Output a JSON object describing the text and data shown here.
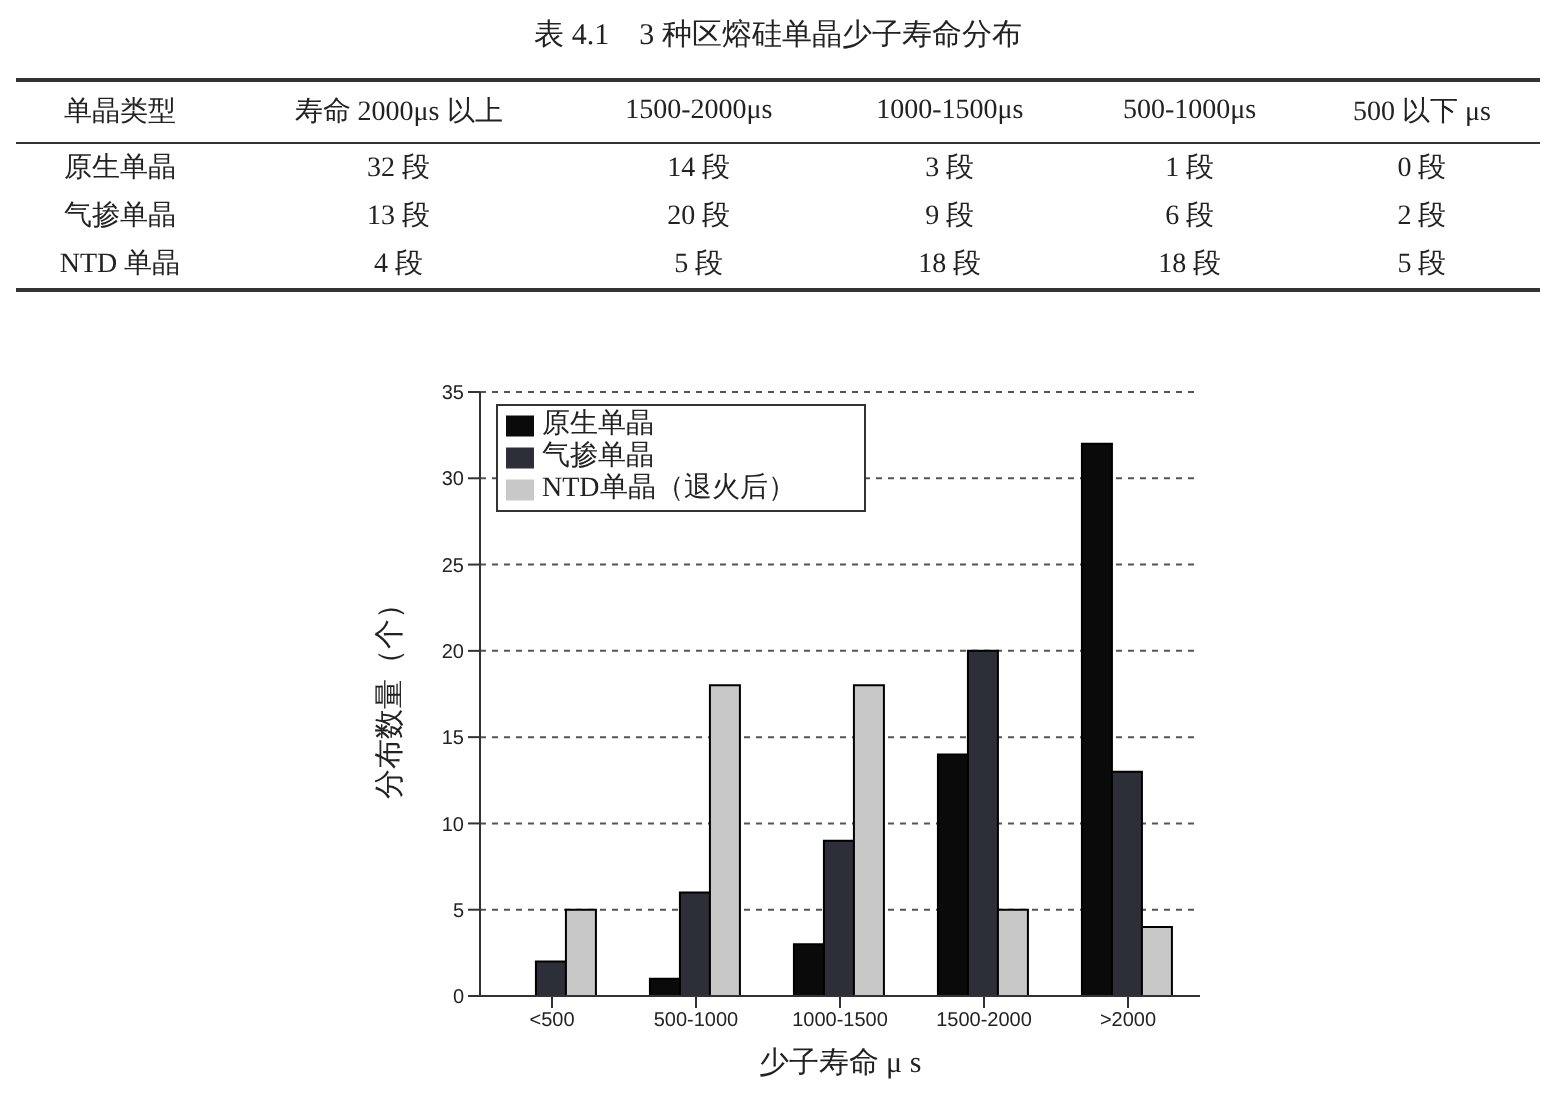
{
  "chart_data": {
    "type": "bar",
    "title": "表 4.1　3 种区熔硅单晶少子寿命分布",
    "xlabel": "少子寿命 μ s",
    "ylabel": "分布数量（个）",
    "categories": [
      "<500",
      "500-1000",
      "1000-1500",
      "1500-2000",
      ">2000"
    ],
    "series": [
      {
        "name": "原生单晶",
        "color": "#0a0a0a",
        "values": [
          0,
          1,
          3,
          14,
          32
        ]
      },
      {
        "name": "气掺单晶",
        "color": "#2c2f38",
        "values": [
          2,
          6,
          9,
          20,
          13
        ]
      },
      {
        "name": "NTD单晶（退火后）",
        "color": "#c8c8c8",
        "values": [
          5,
          18,
          18,
          5,
          4
        ]
      }
    ],
    "annotations": [
      "单晶类型",
      "寿命 2000μs 以上",
      "1500-2000μs",
      "1000-1500μs",
      "500-1000μs",
      "500 以下 μs",
      "原生单晶",
      "32 段",
      "14 段",
      "3 段",
      "1 段",
      "0 段",
      "气掺单晶",
      "13 段",
      "20 段",
      "9 段",
      "6 段",
      "2 段",
      "NTD 单晶",
      "4 段",
      "5 段",
      "18 段",
      "18 段",
      "5 段"
    ],
    "ylim": [
      0,
      35
    ],
    "yticks": [
      0,
      5,
      10,
      15,
      20,
      25,
      30,
      35
    ],
    "grid": "y",
    "legend": "top left"
  }
}
